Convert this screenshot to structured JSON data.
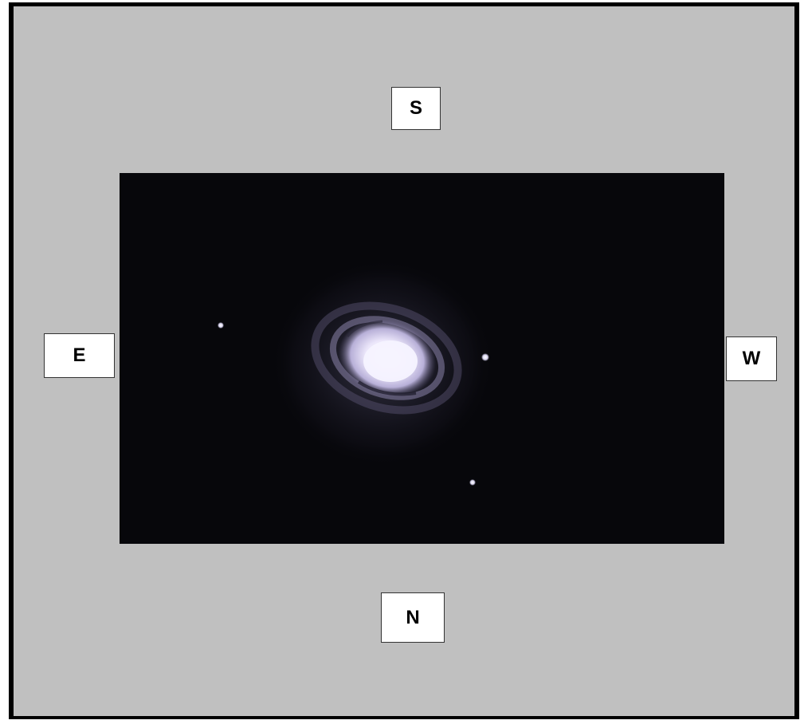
{
  "orientation": {
    "top": "S",
    "left": "E",
    "right": "W",
    "bottom": "N"
  },
  "colors": {
    "frame_background": "#c0c0c0",
    "frame_border": "#000000",
    "label_background": "#ffffff",
    "sky_background": "#07070b",
    "galaxy_core": "#f2eefc",
    "galaxy_halo": "#2a2838"
  },
  "image": {
    "subject": "spiral-galaxy-with-foreground-stars"
  }
}
